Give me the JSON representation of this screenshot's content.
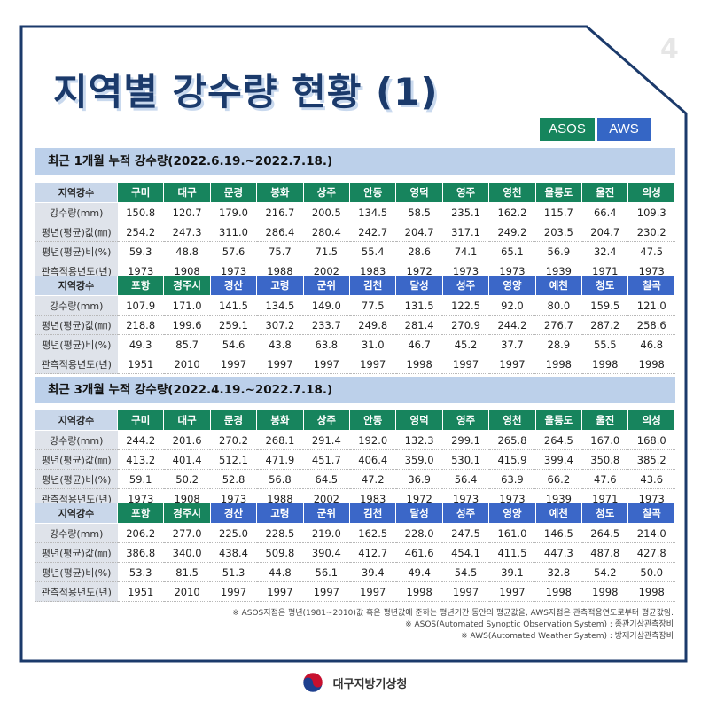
{
  "page_number": "4",
  "title": "지역별 강수량 현황 (1)",
  "tags": {
    "asos": "ASOS",
    "aws": "AWS"
  },
  "colors": {
    "asos": "#17845d",
    "aws": "#3b67c8",
    "title": "#1b3a6b",
    "section_bg": "#bcd0ea"
  },
  "sections": [
    {
      "heading": "최근 1개월 누적 강수량(2022.6.19.~2022.7.18.)",
      "blocks": [
        {
          "header_label": "지역강수",
          "stations": [
            {
              "name": "구미",
              "type": "ASOS"
            },
            {
              "name": "대구",
              "type": "ASOS"
            },
            {
              "name": "문경",
              "type": "ASOS"
            },
            {
              "name": "봉화",
              "type": "ASOS"
            },
            {
              "name": "상주",
              "type": "ASOS"
            },
            {
              "name": "안동",
              "type": "ASOS"
            },
            {
              "name": "영덕",
              "type": "ASOS"
            },
            {
              "name": "영주",
              "type": "ASOS"
            },
            {
              "name": "영천",
              "type": "ASOS"
            },
            {
              "name": "울릉도",
              "type": "ASOS"
            },
            {
              "name": "울진",
              "type": "ASOS"
            },
            {
              "name": "의성",
              "type": "ASOS"
            }
          ],
          "rows": [
            {
              "label": "강수량(mm)",
              "values": [
                "150.8",
                "120.7",
                "179.0",
                "216.7",
                "200.5",
                "134.5",
                "58.5",
                "235.1",
                "162.2",
                "115.7",
                "66.4",
                "109.3"
              ]
            },
            {
              "label": "평년(평균)값(㎜)",
              "values": [
                "254.2",
                "247.3",
                "311.0",
                "286.4",
                "280.4",
                "242.7",
                "204.7",
                "317.1",
                "249.2",
                "203.5",
                "204.7",
                "230.2"
              ]
            },
            {
              "label": "평년(평균)비(%)",
              "values": [
                "59.3",
                "48.8",
                "57.6",
                "75.7",
                "71.5",
                "55.4",
                "28.6",
                "74.1",
                "65.1",
                "56.9",
                "32.4",
                "47.5"
              ]
            },
            {
              "label": "관측적용년도(년)",
              "values": [
                "1973",
                "1908",
                "1973",
                "1988",
                "2002",
                "1983",
                "1972",
                "1973",
                "1973",
                "1939",
                "1971",
                "1973"
              ]
            }
          ]
        },
        {
          "header_label": "지역강수",
          "stations": [
            {
              "name": "포항",
              "type": "ASOS"
            },
            {
              "name": "경주시",
              "type": "ASOS"
            },
            {
              "name": "경산",
              "type": "AWS"
            },
            {
              "name": "고령",
              "type": "AWS"
            },
            {
              "name": "군위",
              "type": "AWS"
            },
            {
              "name": "김천",
              "type": "AWS"
            },
            {
              "name": "달성",
              "type": "AWS"
            },
            {
              "name": "성주",
              "type": "AWS"
            },
            {
              "name": "영양",
              "type": "AWS"
            },
            {
              "name": "예천",
              "type": "AWS"
            },
            {
              "name": "청도",
              "type": "AWS"
            },
            {
              "name": "칠곡",
              "type": "AWS"
            }
          ],
          "rows": [
            {
              "label": "강수량(mm)",
              "values": [
                "107.9",
                "171.0",
                "141.5",
                "134.5",
                "149.0",
                "77.5",
                "131.5",
                "122.5",
                "92.0",
                "80.0",
                "159.5",
                "121.0"
              ]
            },
            {
              "label": "평년(평균)값(㎜)",
              "values": [
                "218.8",
                "199.6",
                "259.1",
                "307.2",
                "233.7",
                "249.8",
                "281.4",
                "270.9",
                "244.2",
                "276.7",
                "287.2",
                "258.6"
              ]
            },
            {
              "label": "평년(평균)비(%)",
              "values": [
                "49.3",
                "85.7",
                "54.6",
                "43.8",
                "63.8",
                "31.0",
                "46.7",
                "45.2",
                "37.7",
                "28.9",
                "55.5",
                "46.8"
              ]
            },
            {
              "label": "관측적용년도(년)",
              "values": [
                "1951",
                "2010",
                "1997",
                "1997",
                "1997",
                "1997",
                "1998",
                "1997",
                "1997",
                "1998",
                "1998",
                "1998"
              ]
            }
          ]
        }
      ]
    },
    {
      "heading": "최근 3개월 누적 강수량(2022.4.19.~2022.7.18.)",
      "blocks": [
        {
          "header_label": "지역강수",
          "stations": [
            {
              "name": "구미",
              "type": "ASOS"
            },
            {
              "name": "대구",
              "type": "ASOS"
            },
            {
              "name": "문경",
              "type": "ASOS"
            },
            {
              "name": "봉화",
              "type": "ASOS"
            },
            {
              "name": "상주",
              "type": "ASOS"
            },
            {
              "name": "안동",
              "type": "ASOS"
            },
            {
              "name": "영덕",
              "type": "ASOS"
            },
            {
              "name": "영주",
              "type": "ASOS"
            },
            {
              "name": "영천",
              "type": "ASOS"
            },
            {
              "name": "울릉도",
              "type": "ASOS"
            },
            {
              "name": "울진",
              "type": "ASOS"
            },
            {
              "name": "의성",
              "type": "ASOS"
            }
          ],
          "rows": [
            {
              "label": "강수량(mm)",
              "values": [
                "244.2",
                "201.6",
                "270.2",
                "268.1",
                "291.4",
                "192.0",
                "132.3",
                "299.1",
                "265.8",
                "264.5",
                "167.0",
                "168.0"
              ]
            },
            {
              "label": "평년(평균)값(㎜)",
              "values": [
                "413.2",
                "401.4",
                "512.1",
                "471.9",
                "451.7",
                "406.4",
                "359.0",
                "530.1",
                "415.9",
                "399.4",
                "350.8",
                "385.2"
              ]
            },
            {
              "label": "평년(평균)비(%)",
              "values": [
                "59.1",
                "50.2",
                "52.8",
                "56.8",
                "64.5",
                "47.2",
                "36.9",
                "56.4",
                "63.9",
                "66.2",
                "47.6",
                "43.6"
              ]
            },
            {
              "label": "관측적용년도(년)",
              "values": [
                "1973",
                "1908",
                "1973",
                "1988",
                "2002",
                "1983",
                "1972",
                "1973",
                "1973",
                "1939",
                "1971",
                "1973"
              ]
            }
          ]
        },
        {
          "header_label": "지역강수",
          "stations": [
            {
              "name": "포항",
              "type": "ASOS"
            },
            {
              "name": "경주시",
              "type": "ASOS"
            },
            {
              "name": "경산",
              "type": "AWS"
            },
            {
              "name": "고령",
              "type": "AWS"
            },
            {
              "name": "군위",
              "type": "AWS"
            },
            {
              "name": "김천",
              "type": "AWS"
            },
            {
              "name": "달성",
              "type": "AWS"
            },
            {
              "name": "성주",
              "type": "AWS"
            },
            {
              "name": "영양",
              "type": "AWS"
            },
            {
              "name": "예천",
              "type": "AWS"
            },
            {
              "name": "청도",
              "type": "AWS"
            },
            {
              "name": "칠곡",
              "type": "AWS"
            }
          ],
          "rows": [
            {
              "label": "강수량(mm)",
              "values": [
                "206.2",
                "277.0",
                "225.0",
                "228.5",
                "219.0",
                "162.5",
                "228.0",
                "247.5",
                "161.0",
                "146.5",
                "264.5",
                "214.0"
              ]
            },
            {
              "label": "평년(평균)값(㎜)",
              "values": [
                "386.8",
                "340.0",
                "438.4",
                "509.8",
                "390.4",
                "412.7",
                "461.6",
                "454.1",
                "411.5",
                "447.3",
                "487.8",
                "427.8"
              ]
            },
            {
              "label": "평년(평균)비(%)",
              "values": [
                "53.3",
                "81.5",
                "51.3",
                "44.8",
                "56.1",
                "39.4",
                "49.4",
                "54.5",
                "39.1",
                "32.8",
                "54.2",
                "50.0"
              ]
            },
            {
              "label": "관측적용년도(년)",
              "values": [
                "1951",
                "2010",
                "1997",
                "1997",
                "1997",
                "1997",
                "1998",
                "1997",
                "1997",
                "1998",
                "1998",
                "1998"
              ]
            }
          ]
        }
      ]
    }
  ],
  "notes": [
    "※ ASOS지점은 평년(1981~2010)값 혹은 평년값에 준하는 평년기간 동안의 평균값을, AWS지점은 관측적용연도로부터 평균값임.",
    "※ ASOS(Automated Synoptic Observation System) : 종관기상관측장비",
    "※ AWS(Automated Weather System) : 방재기상관측장비"
  ],
  "footer": {
    "agency": "대구지방기상청",
    "logo_icon": "government-taegeuk-logo"
  }
}
